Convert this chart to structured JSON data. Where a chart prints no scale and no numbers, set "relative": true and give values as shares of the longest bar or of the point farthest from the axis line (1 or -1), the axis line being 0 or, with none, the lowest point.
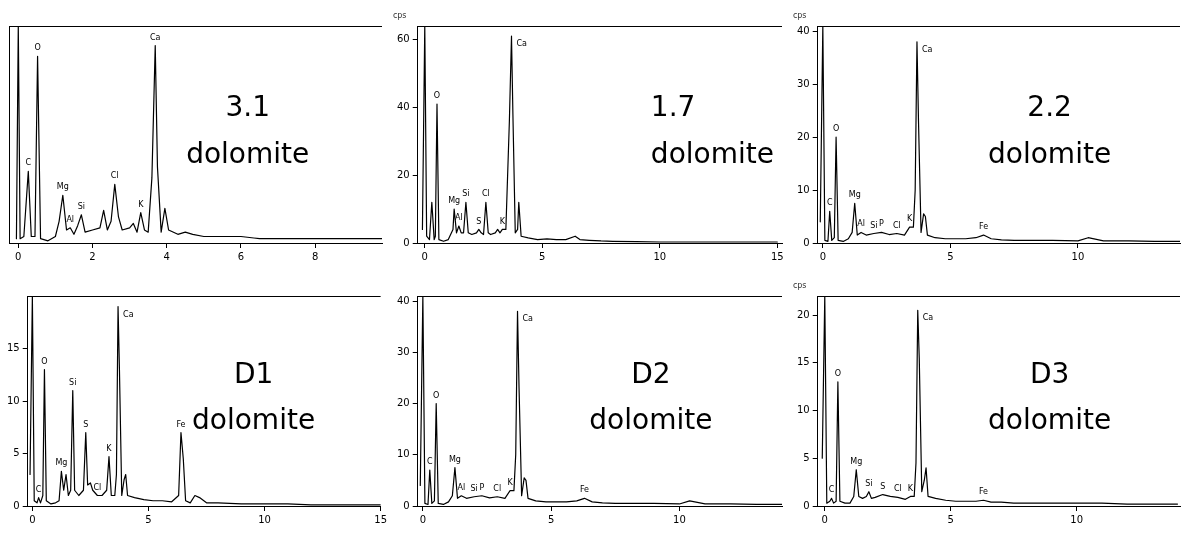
{
  "chart_data": [
    {
      "type": "line",
      "title": "3.1",
      "subtitle": "dolomite",
      "relative": true,
      "tick_labels": "x",
      "xlim": [
        -0.25,
        9.8
      ],
      "xticks": [
        0,
        2,
        4,
        6,
        8
      ],
      "grid": false,
      "legend": false,
      "marker": "none",
      "line_style": "solid",
      "x": [
        -0.05,
        0,
        0.05,
        0.15,
        0.27,
        0.35,
        0.45,
        0.52,
        0.6,
        0.8,
        1.0,
        1.1,
        1.2,
        1.3,
        1.4,
        1.5,
        1.6,
        1.7,
        1.8,
        2.0,
        2.2,
        2.3,
        2.4,
        2.5,
        2.6,
        2.7,
        2.8,
        3.0,
        3.1,
        3.2,
        3.3,
        3.4,
        3.5,
        3.6,
        3.69,
        3.75,
        3.85,
        3.95,
        4.05,
        4.3,
        4.5,
        4.7,
        5.0,
        5.5,
        6.0,
        6.5,
        7.0,
        7.5,
        8.0,
        8.5,
        9.0,
        9.5,
        9.8
      ],
      "series": [
        {
          "color": "#000000",
          "values": [
            0.02,
            1,
            0.02,
            0.03,
            0.33,
            0.03,
            0.03,
            0.86,
            0.02,
            0.01,
            0.03,
            0.1,
            0.22,
            0.06,
            0.07,
            0.04,
            0.08,
            0.13,
            0.05,
            0.06,
            0.07,
            0.15,
            0.06,
            0.1,
            0.27,
            0.12,
            0.06,
            0.07,
            0.09,
            0.05,
            0.14,
            0.06,
            0.05,
            0.3,
            0.91,
            0.35,
            0.05,
            0.16,
            0.06,
            0.04,
            0.05,
            0.04,
            0.03,
            0.03,
            0.03,
            0.02,
            0.02,
            0.02,
            0.02,
            0.02,
            0.02,
            0.02,
            0.02
          ]
        }
      ],
      "annotations": [
        {
          "text": "O",
          "x": 0.52,
          "y": 0.86
        },
        {
          "text": "C",
          "x": 0.27,
          "y": 0.33
        },
        {
          "text": "Mg",
          "x": 1.2,
          "y": 0.22
        },
        {
          "text": "Al",
          "x": 1.4,
          "y": 0.07
        },
        {
          "text": "Si",
          "x": 1.7,
          "y": 0.13
        },
        {
          "text": "Cl",
          "x": 2.6,
          "y": 0.27
        },
        {
          "text": "K",
          "x": 3.3,
          "y": 0.14
        },
        {
          "text": "Ca",
          "x": 3.69,
          "y": 0.91
        }
      ]
    },
    {
      "type": "line",
      "title": "1.7",
      "subtitle": "dolomite",
      "ylabel": "cps",
      "xlim": [
        -0.3,
        15.2
      ],
      "xticks": [
        0,
        5,
        10,
        15
      ],
      "ylim": [
        0,
        64
      ],
      "yticks": [
        0,
        20,
        40,
        60
      ],
      "grid": false,
      "legend": false,
      "marker": "none",
      "line_style": "solid",
      "x": [
        -0.1,
        0,
        0.08,
        0.2,
        0.3,
        0.4,
        0.45,
        0.52,
        0.6,
        0.8,
        1.0,
        1.2,
        1.25,
        1.35,
        1.45,
        1.55,
        1.65,
        1.75,
        1.85,
        2.0,
        2.2,
        2.3,
        2.4,
        2.5,
        2.6,
        2.7,
        2.8,
        3.0,
        3.1,
        3.2,
        3.3,
        3.45,
        3.6,
        3.69,
        3.75,
        3.85,
        3.95,
        4.0,
        4.1,
        4.4,
        4.8,
        5.2,
        5.6,
        6.0,
        6.4,
        6.6,
        7.0,
        7.5,
        8,
        9,
        10,
        11,
        12,
        13,
        14,
        15
      ],
      "series": [
        {
          "color": "#000000",
          "values": [
            4,
            64,
            2,
            1,
            12,
            1,
            2,
            41,
            1,
            0.5,
            1,
            4,
            10,
            3,
            5,
            3,
            3,
            12,
            3,
            2.5,
            3,
            4,
            3,
            2.5,
            12,
            3,
            2.5,
            3,
            4,
            3,
            4,
            4,
            36,
            61,
            38,
            3,
            4,
            12,
            2,
            1.5,
            1,
            1.2,
            1,
            1,
            2,
            1,
            0.8,
            0.6,
            0.5,
            0.4,
            0.3,
            0.3,
            0.3,
            0.3,
            0.3,
            0.3
          ]
        }
      ],
      "annotations": [
        {
          "text": "O",
          "x": 0.52,
          "y": 41
        },
        {
          "text": "Mg",
          "x": 1.25,
          "y": 10
        },
        {
          "text": "Al",
          "x": 1.45,
          "y": 5
        },
        {
          "text": "Si",
          "x": 1.75,
          "y": 12
        },
        {
          "text": "S",
          "x": 2.3,
          "y": 4
        },
        {
          "text": "Cl",
          "x": 2.6,
          "y": 12
        },
        {
          "text": "K",
          "x": 3.3,
          "y": 4
        },
        {
          "text": "Ca",
          "x": 3.69,
          "y": 61
        }
      ]
    },
    {
      "type": "line",
      "title": "2.2",
      "subtitle": "dolomite",
      "ylabel": "cps",
      "xlim": [
        -0.2,
        14
      ],
      "xticks": [
        0,
        5,
        10
      ],
      "ylim": [
        0,
        41
      ],
      "yticks": [
        0,
        10,
        20,
        30,
        40
      ],
      "grid": false,
      "legend": false,
      "marker": "none",
      "line_style": "solid",
      "x": [
        -0.1,
        0,
        0.08,
        0.2,
        0.27,
        0.35,
        0.45,
        0.52,
        0.6,
        0.8,
        1.0,
        1.15,
        1.25,
        1.35,
        1.5,
        1.7,
        2.0,
        2.3,
        2.6,
        2.9,
        3.2,
        3.4,
        3.55,
        3.62,
        3.69,
        3.75,
        3.85,
        3.95,
        4.02,
        4.1,
        4.4,
        4.8,
        5.2,
        5.6,
        6.0,
        6.3,
        6.6,
        7.0,
        7.5,
        8,
        9,
        10,
        10.4,
        11,
        12,
        13,
        14
      ],
      "series": [
        {
          "color": "#000000",
          "values": [
            4,
            41,
            0.5,
            0.3,
            6,
            0.5,
            1,
            20,
            0.5,
            0.3,
            0.8,
            2,
            7.5,
            1.5,
            2,
            1.5,
            1.8,
            2,
            1.6,
            1.8,
            1.5,
            3,
            3,
            10,
            38,
            23,
            2,
            5.5,
            5,
            1.5,
            1,
            0.8,
            0.8,
            0.8,
            1,
            1.5,
            0.8,
            0.6,
            0.5,
            0.5,
            0.5,
            0.4,
            1,
            0.4,
            0.4,
            0.3,
            0.3
          ]
        }
      ],
      "annotations": [
        {
          "text": "C",
          "x": 0.27,
          "y": 6
        },
        {
          "text": "O",
          "x": 0.52,
          "y": 20
        },
        {
          "text": "Mg",
          "x": 1.25,
          "y": 7.5
        },
        {
          "text": "Al",
          "x": 1.5,
          "y": 2
        },
        {
          "text": "Si",
          "x": 2.0,
          "y": 1.8
        },
        {
          "text": "P",
          "x": 2.3,
          "y": 2
        },
        {
          "text": "Cl",
          "x": 2.9,
          "y": 1.8
        },
        {
          "text": "K",
          "x": 3.4,
          "y": 3
        },
        {
          "text": "Ca",
          "x": 3.69,
          "y": 38
        },
        {
          "text": "Fe",
          "x": 6.3,
          "y": 1.5
        }
      ]
    },
    {
      "type": "line",
      "title": "D1",
      "subtitle": "dolomite",
      "xlim": [
        -0.2,
        15
      ],
      "xticks": [
        0,
        5,
        10,
        15
      ],
      "ylim": [
        0,
        20
      ],
      "yticks": [
        0,
        5,
        10,
        15
      ],
      "grid": false,
      "legend": false,
      "marker": "none",
      "line_style": "solid",
      "x": [
        -0.1,
        0,
        0.08,
        0.2,
        0.27,
        0.35,
        0.45,
        0.52,
        0.6,
        0.8,
        1.0,
        1.15,
        1.25,
        1.35,
        1.45,
        1.55,
        1.65,
        1.74,
        1.82,
        2.0,
        2.2,
        2.3,
        2.38,
        2.5,
        2.6,
        2.8,
        3.0,
        3.2,
        3.3,
        3.4,
        3.55,
        3.62,
        3.69,
        3.75,
        3.85,
        3.95,
        4.02,
        4.1,
        4.4,
        4.8,
        5.2,
        5.6,
        6.0,
        6.3,
        6.4,
        6.5,
        6.6,
        6.8,
        7.0,
        7.2,
        7.5,
        8,
        9,
        10,
        11,
        12,
        13,
        14,
        15
      ],
      "series": [
        {
          "color": "#000000",
          "values": [
            3,
            20,
            0.5,
            0.3,
            0.8,
            0.3,
            1,
            13,
            0.5,
            0.2,
            0.3,
            0.5,
            3.3,
            1.5,
            3,
            1,
            1.5,
            11,
            1.5,
            1,
            1.5,
            7,
            2,
            2.2,
            1.5,
            1,
            1,
            1.5,
            4.7,
            1,
            1,
            3,
            19,
            13,
            1,
            2.5,
            3,
            1,
            0.8,
            0.6,
            0.5,
            0.5,
            0.4,
            1,
            7,
            4.5,
            0.5,
            0.3,
            1,
            0.8,
            0.3,
            0.3,
            0.2,
            0.2,
            0.2,
            0.1,
            0.1,
            0.1,
            0.1
          ]
        }
      ],
      "annotations": [
        {
          "text": "C",
          "x": 0.27,
          "y": 0.8
        },
        {
          "text": "O",
          "x": 0.52,
          "y": 13
        },
        {
          "text": "Mg",
          "x": 1.25,
          "y": 3.3
        },
        {
          "text": "Si",
          "x": 1.74,
          "y": 11
        },
        {
          "text": "S",
          "x": 2.3,
          "y": 7
        },
        {
          "text": "Cl",
          "x": 2.8,
          "y": 1
        },
        {
          "text": "K",
          "x": 3.3,
          "y": 4.7
        },
        {
          "text": "Ca",
          "x": 3.69,
          "y": 19
        },
        {
          "text": "Fe",
          "x": 6.4,
          "y": 7
        }
      ]
    },
    {
      "type": "line",
      "title": "D2",
      "subtitle": "dolomite",
      "xlim": [
        -0.2,
        14
      ],
      "xticks": [
        0,
        5,
        10
      ],
      "ylim": [
        0,
        41
      ],
      "yticks": [
        0,
        10,
        20,
        30,
        40
      ],
      "grid": false,
      "legend": false,
      "marker": "none",
      "line_style": "solid",
      "x": [
        -0.1,
        0,
        0.08,
        0.2,
        0.27,
        0.35,
        0.45,
        0.52,
        0.6,
        0.8,
        1.0,
        1.15,
        1.25,
        1.35,
        1.5,
        1.7,
        2.0,
        2.3,
        2.6,
        2.9,
        3.2,
        3.4,
        3.55,
        3.62,
        3.69,
        3.75,
        3.85,
        3.95,
        4.02,
        4.1,
        4.4,
        4.8,
        5.2,
        5.6,
        6.0,
        6.3,
        6.6,
        7.0,
        7.5,
        8,
        9,
        10,
        10.4,
        11,
        12,
        13,
        14
      ],
      "series": [
        {
          "color": "#000000",
          "values": [
            4,
            41,
            0.5,
            0.3,
            7,
            0.5,
            1,
            20,
            0.5,
            0.3,
            0.8,
            2,
            7.5,
            1.5,
            2,
            1.5,
            1.8,
            2,
            1.6,
            1.8,
            1.5,
            3,
            3,
            10,
            38,
            23,
            2,
            5.5,
            5,
            1.5,
            1,
            0.8,
            0.8,
            0.8,
            1,
            1.5,
            0.8,
            0.6,
            0.5,
            0.5,
            0.5,
            0.4,
            1,
            0.4,
            0.4,
            0.3,
            0.3
          ]
        }
      ],
      "annotations": [
        {
          "text": "C",
          "x": 0.27,
          "y": 7
        },
        {
          "text": "O",
          "x": 0.52,
          "y": 20
        },
        {
          "text": "Mg",
          "x": 1.25,
          "y": 7.5
        },
        {
          "text": "Al",
          "x": 1.5,
          "y": 2
        },
        {
          "text": "Si",
          "x": 2.0,
          "y": 1.8
        },
        {
          "text": "P",
          "x": 2.3,
          "y": 2
        },
        {
          "text": "Cl",
          "x": 2.9,
          "y": 1.8
        },
        {
          "text": "K",
          "x": 3.4,
          "y": 3
        },
        {
          "text": "Ca",
          "x": 3.69,
          "y": 38
        },
        {
          "text": "Fe",
          "x": 6.3,
          "y": 1.5
        }
      ]
    },
    {
      "type": "line",
      "title": "D3",
      "subtitle": "dolomite",
      "ylabel": "cps",
      "xlim": [
        -0.28,
        14.1
      ],
      "xticks": [
        0,
        5,
        10
      ],
      "ylim": [
        0,
        22
      ],
      "yticks": [
        0,
        5,
        10,
        15,
        20
      ],
      "grid": false,
      "legend": false,
      "marker": "none",
      "line_style": "solid",
      "x": [
        -0.1,
        0,
        0.08,
        0.2,
        0.27,
        0.35,
        0.45,
        0.52,
        0.6,
        0.8,
        1.0,
        1.15,
        1.25,
        1.35,
        1.5,
        1.65,
        1.75,
        1.85,
        2.0,
        2.3,
        2.6,
        2.9,
        3.2,
        3.4,
        3.55,
        3.62,
        3.69,
        3.75,
        3.85,
        3.95,
        4.02,
        4.1,
        4.4,
        4.8,
        5.2,
        5.6,
        6.0,
        6.3,
        6.6,
        7.0,
        7.5,
        8,
        9,
        10,
        11,
        12,
        13,
        14
      ],
      "series": [
        {
          "color": "#000000",
          "values": [
            5,
            22,
            0.3,
            0.5,
            0.8,
            0.3,
            0.5,
            13,
            0.5,
            0.3,
            0.3,
            1,
            3.8,
            1,
            0.8,
            1,
            1.5,
            0.8,
            0.9,
            1.2,
            1,
            0.9,
            0.7,
            1,
            1,
            4.5,
            20.5,
            15.5,
            1.5,
            2.7,
            4,
            1,
            0.8,
            0.6,
            0.5,
            0.5,
            0.5,
            0.6,
            0.4,
            0.4,
            0.3,
            0.3,
            0.3,
            0.3,
            0.3,
            0.2,
            0.2,
            0.2
          ]
        }
      ],
      "annotations": [
        {
          "text": "C",
          "x": 0.27,
          "y": 0.8
        },
        {
          "text": "O",
          "x": 0.52,
          "y": 13
        },
        {
          "text": "Mg",
          "x": 1.25,
          "y": 3.8
        },
        {
          "text": "Si",
          "x": 1.75,
          "y": 1.5
        },
        {
          "text": "S",
          "x": 2.3,
          "y": 1.2
        },
        {
          "text": "Cl",
          "x": 2.9,
          "y": 0.9
        },
        {
          "text": "K",
          "x": 3.4,
          "y": 1
        },
        {
          "text": "Ca",
          "x": 3.69,
          "y": 20.5
        },
        {
          "text": "Fe",
          "x": 6.3,
          "y": 0.6
        }
      ]
    }
  ]
}
